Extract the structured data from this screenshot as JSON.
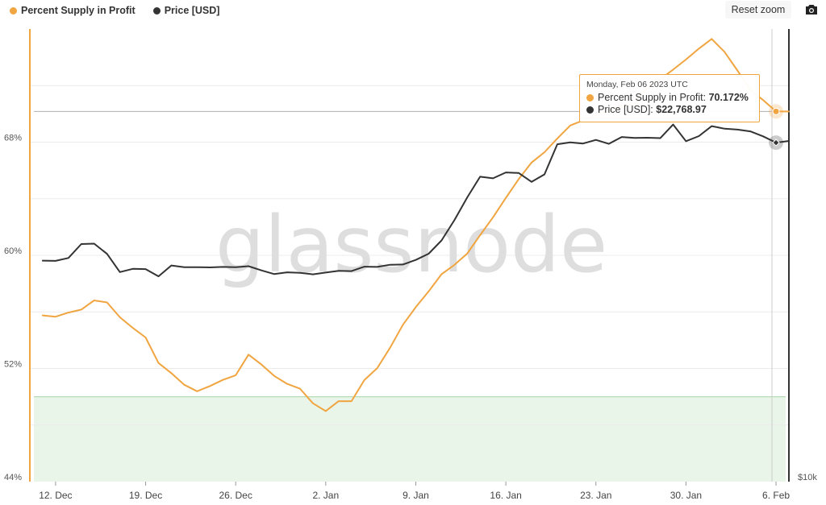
{
  "legend": {
    "items": [
      {
        "label": "Percent Supply in Profit",
        "color": "#f0a541"
      },
      {
        "label": "Price [USD]",
        "color": "#333333"
      }
    ]
  },
  "toolbar": {
    "reset_zoom_label": "Reset zoom",
    "camera_icon": "camera-icon"
  },
  "watermark": "glassnode",
  "tooltip": {
    "date": "Monday, Feb 06 2023 UTC",
    "series1_label": "Percent Supply in Profit: ",
    "series1_value": "70.172%",
    "series2_label": "Price [USD]: ",
    "series2_value": "$22,768.97"
  },
  "chart_data": {
    "type": "line",
    "x_tick_labels": [
      "12. Dec",
      "19. Dec",
      "26. Dec",
      "2. Jan",
      "9. Jan",
      "16. Jan",
      "23. Jan",
      "30. Jan",
      "6. Feb"
    ],
    "x_tick_dates": [
      "2022-12-12",
      "2022-12-19",
      "2022-12-26",
      "2023-01-02",
      "2023-01-09",
      "2023-01-16",
      "2023-01-23",
      "2023-01-30",
      "2023-02-06"
    ],
    "x_range": [
      "2022-12-10",
      "2023-02-07"
    ],
    "left_axis": {
      "ticks": [
        "44%",
        "52%",
        "60%",
        "68%"
      ],
      "tick_values": [
        44,
        52,
        60,
        68
      ],
      "range": [
        44,
        76
      ]
    },
    "right_axis": {
      "ticks": [
        "$10k"
      ],
      "tick_values": [
        10000
      ],
      "scale": "log",
      "range": [
        10000,
        30000
      ]
    },
    "grid": true,
    "shaded_band": {
      "color": "#e9f5e9",
      "from": 44,
      "to": 50.0
    },
    "dates": [
      "2022-12-11",
      "2022-12-12",
      "2022-12-13",
      "2022-12-14",
      "2022-12-15",
      "2022-12-16",
      "2022-12-17",
      "2022-12-18",
      "2022-12-19",
      "2022-12-20",
      "2022-12-21",
      "2022-12-22",
      "2022-12-23",
      "2022-12-24",
      "2022-12-25",
      "2022-12-26",
      "2022-12-27",
      "2022-12-28",
      "2022-12-29",
      "2022-12-30",
      "2022-12-31",
      "2023-01-01",
      "2023-01-02",
      "2023-01-03",
      "2023-01-04",
      "2023-01-05",
      "2023-01-06",
      "2023-01-07",
      "2023-01-08",
      "2023-01-09",
      "2023-01-10",
      "2023-01-11",
      "2023-01-12",
      "2023-01-13",
      "2023-01-14",
      "2023-01-15",
      "2023-01-16",
      "2023-01-17",
      "2023-01-18",
      "2023-01-19",
      "2023-01-20",
      "2023-01-21",
      "2023-01-22",
      "2023-01-23",
      "2023-01-24",
      "2023-01-25",
      "2023-01-26",
      "2023-01-27",
      "2023-01-28",
      "2023-01-29",
      "2023-01-30",
      "2023-01-31",
      "2023-02-01",
      "2023-02-02",
      "2023-02-03",
      "2023-02-04",
      "2023-02-05",
      "2023-02-06",
      "2023-02-07"
    ],
    "series": [
      {
        "name": "Percent Supply in Profit",
        "color": "#f0a541",
        "axis": "left",
        "values": [
          55.75,
          55.66,
          55.95,
          56.16,
          56.81,
          56.67,
          55.62,
          54.87,
          54.19,
          52.39,
          51.67,
          50.85,
          50.39,
          50.76,
          51.19,
          51.52,
          52.98,
          52.28,
          51.47,
          50.91,
          50.57,
          49.54,
          48.99,
          49.69,
          49.69,
          51.18,
          52.02,
          53.47,
          55.09,
          56.34,
          57.45,
          58.67,
          59.32,
          60.13,
          61.43,
          62.69,
          64.06,
          65.39,
          66.56,
          67.29,
          68.26,
          69.18,
          69.54,
          69.93,
          70.28,
          70.54,
          70.68,
          71.87,
          72.45,
          73.13,
          73.84,
          74.61,
          75.3,
          74.37,
          73.07,
          71.69,
          70.97,
          70.17,
          70.17
        ]
      },
      {
        "name": "Price [USD]",
        "color": "#333333",
        "axis": "right",
        "values": [
          17100,
          17090,
          17210,
          17800,
          17820,
          17380,
          16630,
          16760,
          16750,
          16460,
          16900,
          16830,
          16830,
          16820,
          16840,
          16830,
          16870,
          16700,
          16550,
          16620,
          16600,
          16540,
          16610,
          16680,
          16670,
          16850,
          16840,
          16930,
          16940,
          17130,
          17390,
          17960,
          18860,
          19940,
          20960,
          20880,
          21180,
          21150,
          20700,
          21080,
          22680,
          22780,
          22720,
          22920,
          22700,
          23080,
          23030,
          23040,
          23020,
          23790,
          22850,
          23130,
          23700,
          23550,
          23500,
          23400,
          23120,
          22769,
          22860
        ]
      }
    ]
  }
}
